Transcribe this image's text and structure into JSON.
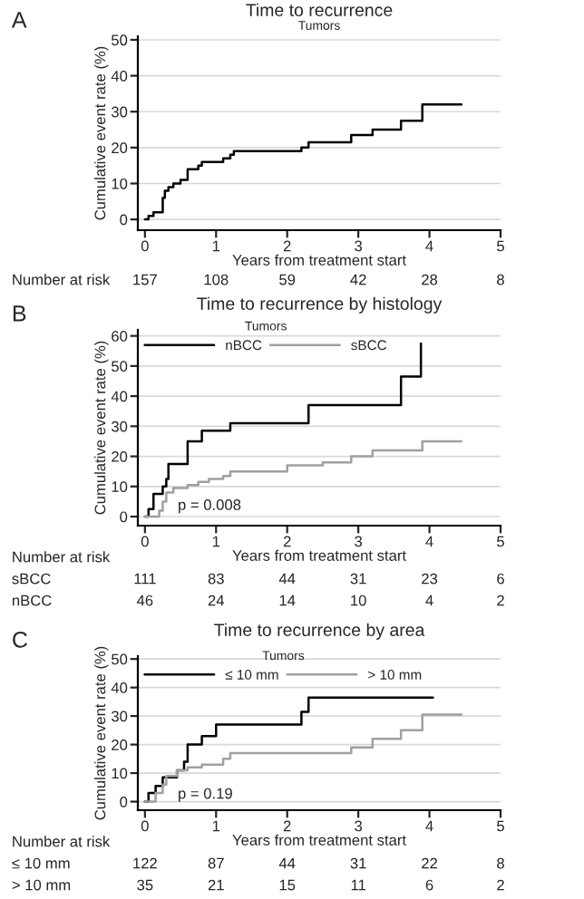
{
  "chart_data": [
    {
      "type": "step",
      "title": "Time to recurrence",
      "xlabel": "Years from treatment start",
      "ylabel": "Cumulative event rate (%)",
      "legend_title": "Tumors",
      "grid": "y",
      "xlim": [
        -0.1,
        5
      ],
      "xticks": [
        0,
        1,
        2,
        3,
        4,
        5
      ],
      "ylim": [
        -3,
        51
      ],
      "yticks": [
        0,
        10,
        20,
        30,
        40,
        50
      ],
      "series": [
        {
          "color": "#000000",
          "x": [
            0,
            0.05,
            0.12,
            0.25,
            0.28,
            0.33,
            0.4,
            0.5,
            0.6,
            0.75,
            0.8,
            1.1,
            1.2,
            1.25,
            2.2,
            2.3,
            2.9,
            3.2,
            3.6,
            3.9,
            4.45
          ],
          "values": [
            0,
            1,
            2,
            6,
            8,
            9,
            10,
            11,
            14,
            15,
            16,
            17,
            18,
            19,
            20,
            21.5,
            23.5,
            25,
            27.5,
            32,
            32
          ]
        }
      ],
      "annotations": [
        "A",
        "Number at risk",
        "157",
        "108",
        "59",
        "42",
        "28",
        "8"
      ]
    },
    {
      "type": "step",
      "title": "Time to recurrence by histology",
      "xlabel": "Years from treatment start",
      "ylabel": "Cumulative event rate (%)",
      "legend_title": "Tumors",
      "legend": "top left",
      "grid": "y",
      "xlim": [
        -0.1,
        5
      ],
      "xticks": [
        0,
        1,
        2,
        3,
        4,
        5
      ],
      "ylim": [
        -3,
        62
      ],
      "yticks": [
        0,
        10,
        20,
        30,
        40,
        50,
        60
      ],
      "series": [
        {
          "name": "nBCC",
          "color": "#000000",
          "x": [
            0,
            0.05,
            0.12,
            0.25,
            0.3,
            0.33,
            0.6,
            0.8,
            1.2,
            2.3,
            3.6,
            3.88
          ],
          "values": [
            0,
            2.5,
            7.5,
            10,
            12.5,
            17.5,
            25,
            28.5,
            31,
            37,
            46.5,
            57.5
          ]
        },
        {
          "name": "sBCC",
          "color": "#a0a0a0",
          "x": [
            0,
            0.2,
            0.25,
            0.3,
            0.4,
            0.6,
            0.75,
            0.9,
            1.1,
            1.2,
            2.0,
            2.5,
            2.9,
            3.2,
            3.9,
            4.45
          ],
          "values": [
            0,
            2,
            5,
            8,
            9.5,
            10.5,
            11.5,
            12.5,
            13.5,
            15,
            17,
            18,
            20,
            22,
            25,
            25
          ]
        }
      ],
      "annotations": [
        "B",
        "p = 0.008",
        "Number at risk",
        "sBCC",
        "111",
        "83",
        "44",
        "31",
        "23",
        "6",
        "nBCC",
        "46",
        "24",
        "14",
        "10",
        "4",
        "2"
      ]
    },
    {
      "type": "step",
      "title": "Time to recurrence by area",
      "xlabel": "Years from treatment start",
      "ylabel": "Cumulative event rate (%)",
      "legend_title": "Tumors",
      "legend": "top left",
      "grid": "y",
      "xlim": [
        -0.1,
        5
      ],
      "xticks": [
        0,
        1,
        2,
        3,
        4,
        5
      ],
      "ylim": [
        -3,
        51
      ],
      "yticks": [
        0,
        10,
        20,
        30,
        40,
        50
      ],
      "series": [
        {
          "name": "≤ 10 mm",
          "color": "#000000",
          "x": [
            0,
            0.05,
            0.15,
            0.25,
            0.45,
            0.55,
            0.6,
            0.8,
            1.0,
            2.2,
            2.3,
            4.05
          ],
          "values": [
            0,
            3,
            5.5,
            8.5,
            11,
            14,
            20,
            23,
            27,
            31.5,
            36.5,
            36.5
          ]
        },
        {
          "name": "> 10 mm",
          "color": "#a0a0a0",
          "x": [
            0,
            0.15,
            0.25,
            0.3,
            0.45,
            0.6,
            0.8,
            1.1,
            1.2,
            2.9,
            3.2,
            3.6,
            3.9,
            4.45
          ],
          "values": [
            0,
            3,
            6,
            9,
            11,
            12,
            13,
            15,
            17,
            19,
            22,
            25,
            30.5,
            30.5
          ]
        }
      ],
      "annotations": [
        "C",
        "p = 0.19",
        "Number at risk",
        "≤ 10 mm",
        "122",
        "87",
        "44",
        "31",
        "22",
        "8",
        "> 10 mm",
        "35",
        "21",
        "15",
        "11",
        "6",
        "2"
      ]
    }
  ]
}
